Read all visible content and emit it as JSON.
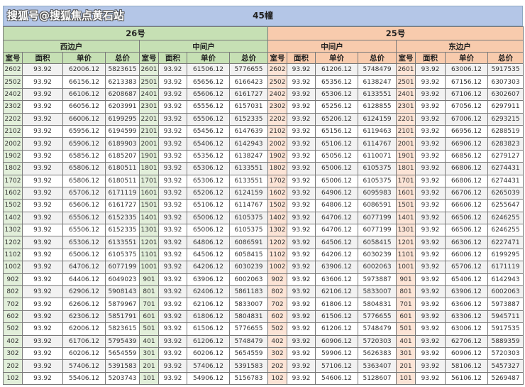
{
  "title": "45幢",
  "buildings": [
    {
      "name": "26号",
      "units": [
        "西边户",
        "中间户"
      ],
      "color": "#c6e0b4"
    },
    {
      "name": "25号",
      "units": [
        "中间户",
        "东边户"
      ],
      "color": "#f8cbad"
    }
  ],
  "columns": [
    "室号",
    "面积",
    "单价",
    "总价"
  ],
  "rows": [
    [
      [
        "2602",
        "93.92",
        "62006.12",
        "5823615"
      ],
      [
        "2601",
        "93.92",
        "61506.12",
        "5776655"
      ],
      [
        "2602",
        "93.92",
        "61206.12",
        "5748479"
      ],
      [
        "2601",
        "93.92",
        "63006.12",
        "5917535"
      ]
    ],
    [
      [
        "2502",
        "93.92",
        "66156.12",
        "6213383"
      ],
      [
        "2501",
        "93.92",
        "65656.12",
        "6166423"
      ],
      [
        "2502",
        "93.92",
        "65356.12",
        "6138247"
      ],
      [
        "2501",
        "93.92",
        "67156.12",
        "6307303"
      ]
    ],
    [
      [
        "2402",
        "93.92",
        "66106.12",
        "6208687"
      ],
      [
        "2401",
        "93.92",
        "65606.12",
        "6161727"
      ],
      [
        "2402",
        "93.92",
        "65306.12",
        "6133551"
      ],
      [
        "2401",
        "93.92",
        "67106.12",
        "6302607"
      ]
    ],
    [
      [
        "2302",
        "93.92",
        "66056.12",
        "6203991"
      ],
      [
        "2301",
        "93.92",
        "65556.12",
        "6157031"
      ],
      [
        "2302",
        "93.92",
        "65256.12",
        "6128855"
      ],
      [
        "2301",
        "93.92",
        "67056.12",
        "6297911"
      ]
    ],
    [
      [
        "2202",
        "93.92",
        "66006.12",
        "6199295"
      ],
      [
        "2201",
        "93.92",
        "65506.12",
        "6152335"
      ],
      [
        "2202",
        "93.92",
        "65206.12",
        "6124159"
      ],
      [
        "2201",
        "93.92",
        "67006.12",
        "6293215"
      ]
    ],
    [
      [
        "2102",
        "93.92",
        "65956.12",
        "6194599"
      ],
      [
        "2101",
        "93.92",
        "65456.12",
        "6147639"
      ],
      [
        "2102",
        "93.92",
        "65156.12",
        "6119463"
      ],
      [
        "2101",
        "93.92",
        "66956.12",
        "6288519"
      ]
    ],
    [
      [
        "2002",
        "93.92",
        "65906.12",
        "6189903"
      ],
      [
        "2001",
        "93.92",
        "65406.12",
        "6142943"
      ],
      [
        "2002",
        "93.92",
        "65106.12",
        "6114767"
      ],
      [
        "2001",
        "93.92",
        "66906.12",
        "6283823"
      ]
    ],
    [
      [
        "1902",
        "93.92",
        "65856.12",
        "6185207"
      ],
      [
        "1901",
        "93.92",
        "65356.12",
        "6138247"
      ],
      [
        "1902",
        "93.92",
        "65056.12",
        "6110071"
      ],
      [
        "1901",
        "93.92",
        "66856.12",
        "6279127"
      ]
    ],
    [
      [
        "1802",
        "93.92",
        "65806.12",
        "6180511"
      ],
      [
        "1801",
        "93.92",
        "65306.12",
        "6133551"
      ],
      [
        "1802",
        "93.92",
        "65006.12",
        "6105375"
      ],
      [
        "1801",
        "93.92",
        "66806.12",
        "6274431"
      ]
    ],
    [
      [
        "1702",
        "93.92",
        "65806.12",
        "6180511"
      ],
      [
        "1701",
        "93.92",
        "65306.12",
        "6133551"
      ],
      [
        "1702",
        "93.92",
        "65006.12",
        "6105375"
      ],
      [
        "1701",
        "93.92",
        "66806.12",
        "6274431"
      ]
    ],
    [
      [
        "1602",
        "93.92",
        "65706.12",
        "6171119"
      ],
      [
        "1601",
        "93.92",
        "65206.12",
        "6124159"
      ],
      [
        "1602",
        "93.92",
        "64906.12",
        "6095983"
      ],
      [
        "1601",
        "93.92",
        "66706.12",
        "6265039"
      ]
    ],
    [
      [
        "1502",
        "93.92",
        "65606.12",
        "6161727"
      ],
      [
        "1501",
        "93.92",
        "65106.12",
        "6114767"
      ],
      [
        "1502",
        "93.92",
        "64806.12",
        "6086591"
      ],
      [
        "1501",
        "93.92",
        "66606.12",
        "6255647"
      ]
    ],
    [
      [
        "1402",
        "93.92",
        "65506.12",
        "6152335"
      ],
      [
        "1401",
        "93.92",
        "65006.12",
        "6105375"
      ],
      [
        "1402",
        "93.92",
        "64706.12",
        "6077199"
      ],
      [
        "1401",
        "93.92",
        "66506.12",
        "6246255"
      ]
    ],
    [
      [
        "1302",
        "93.92",
        "65506.12",
        "6152335"
      ],
      [
        "1301",
        "93.92",
        "65006.12",
        "6105375"
      ],
      [
        "1302",
        "93.92",
        "64706.12",
        "6077199"
      ],
      [
        "1301",
        "93.92",
        "66506.12",
        "6246255"
      ]
    ],
    [
      [
        "1202",
        "93.92",
        "65306.12",
        "6133551"
      ],
      [
        "1201",
        "93.92",
        "64806.12",
        "6086591"
      ],
      [
        "1202",
        "93.92",
        "64506.12",
        "6058415"
      ],
      [
        "1201",
        "93.92",
        "66306.12",
        "6227471"
      ]
    ],
    [
      [
        "1102",
        "93.92",
        "65006.12",
        "6105375"
      ],
      [
        "1101",
        "93.92",
        "64506.12",
        "6058415"
      ],
      [
        "1102",
        "93.92",
        "64206.12",
        "6030239"
      ],
      [
        "1101",
        "93.92",
        "66006.12",
        "6199295"
      ]
    ],
    [
      [
        "1002",
        "93.92",
        "64706.12",
        "6077199"
      ],
      [
        "1001",
        "93.92",
        "64206.12",
        "6030239"
      ],
      [
        "1002",
        "93.92",
        "63906.12",
        "6002063"
      ],
      [
        "1001",
        "93.92",
        "65706.12",
        "6171119"
      ]
    ],
    [
      [
        "902",
        "93.92",
        "64406.12",
        "6049023"
      ],
      [
        "901",
        "93.92",
        "63906.12",
        "6002063"
      ],
      [
        "902",
        "93.92",
        "63606.12",
        "5973887"
      ],
      [
        "901",
        "93.92",
        "65406.12",
        "6142943"
      ]
    ],
    [
      [
        "802",
        "93.92",
        "62906.12",
        "5908143"
      ],
      [
        "801",
        "93.92",
        "62406.12",
        "5861183"
      ],
      [
        "802",
        "93.92",
        "62106.12",
        "5833007"
      ],
      [
        "801",
        "93.92",
        "63906.12",
        "6002063"
      ]
    ],
    [
      [
        "702",
        "93.92",
        "62606.12",
        "5879967"
      ],
      [
        "701",
        "93.92",
        "62106.12",
        "5833007"
      ],
      [
        "702",
        "93.92",
        "61806.12",
        "5804831"
      ],
      [
        "701",
        "93.92",
        "63606.12",
        "5973887"
      ]
    ],
    [
      [
        "602",
        "93.92",
        "62306.12",
        "5851791"
      ],
      [
        "601",
        "93.92",
        "61806.12",
        "5804831"
      ],
      [
        "602",
        "93.92",
        "61506.12",
        "5776655"
      ],
      [
        "601",
        "93.92",
        "63306.12",
        "5945711"
      ]
    ],
    [
      [
        "502",
        "93.92",
        "62006.12",
        "5823615"
      ],
      [
        "501",
        "93.92",
        "61506.12",
        "5776655"
      ],
      [
        "502",
        "93.92",
        "61206.12",
        "5748479"
      ],
      [
        "501",
        "93.92",
        "63006.12",
        "5917535"
      ]
    ],
    [
      [
        "402",
        "93.92",
        "61706.12",
        "5795439"
      ],
      [
        "401",
        "93.92",
        "61206.12",
        "5748479"
      ],
      [
        "402",
        "93.92",
        "60906.12",
        "5720303"
      ],
      [
        "401",
        "93.92",
        "62706.12",
        "5889359"
      ]
    ],
    [
      [
        "302",
        "93.92",
        "60206.12",
        "5654559"
      ],
      [
        "301",
        "93.92",
        "60206.12",
        "5654559"
      ],
      [
        "302",
        "93.92",
        "59906.12",
        "5626383"
      ],
      [
        "301",
        "93.92",
        "60906.12",
        "5720303"
      ]
    ],
    [
      [
        "202",
        "93.92",
        "57406.12",
        "5391583"
      ],
      [
        "201",
        "93.92",
        "57406.12",
        "5391583"
      ],
      [
        "202",
        "93.92",
        "57106.12",
        "5363407"
      ],
      [
        "201",
        "93.92",
        "58106.12",
        "5457327"
      ]
    ],
    [
      [
        "102",
        "93.92",
        "55406.12",
        "5203743"
      ],
      [
        "101",
        "93.92",
        "54906.12",
        "5156783"
      ],
      [
        "102",
        "93.92",
        "54606.12",
        "5128607"
      ],
      [
        "101",
        "93.92",
        "56106.12",
        "5269487"
      ]
    ]
  ],
  "watermark": "搜狐号@搜狐焦点黄石站"
}
